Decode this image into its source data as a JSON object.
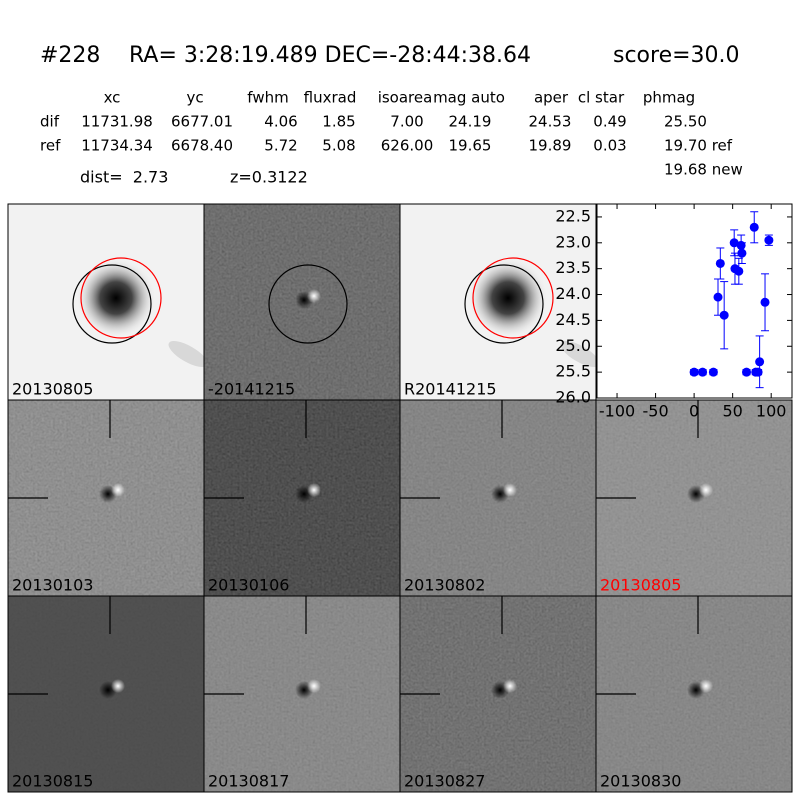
{
  "header": {
    "id": "#228",
    "coords": "RA= 3:28:19.489 DEC=-28:44:38.64",
    "score": "score=30.0"
  },
  "table": {
    "columns": [
      "xc",
      "yc",
      "fwhm",
      "fluxrad",
      "isoarea",
      "mag auto",
      "aper",
      "cl star",
      "phmag"
    ],
    "rows": [
      [
        "dif",
        "11731.98",
        "6677.01",
        "4.06",
        "1.85",
        "7.00",
        "24.19",
        "24.53",
        "0.49",
        "25.50"
      ],
      [
        "ref",
        "11734.34",
        "6678.40",
        "5.72",
        "5.08",
        "626.00",
        "19.65",
        "19.89",
        "0.03",
        "19.70 ref"
      ]
    ],
    "extra": "19.68 new",
    "dist": "dist=  2.73",
    "z": "z=0.3122"
  },
  "panels": [
    {
      "label": "20130805"
    },
    {
      "label": "-20141215"
    },
    {
      "label": "R20141215"
    },
    {
      "label": "20130103"
    },
    {
      "label": "20130106"
    },
    {
      "label": "20130802"
    },
    {
      "label": "20130805",
      "label_color": "#ff0000"
    },
    {
      "label": "20130815"
    },
    {
      "label": "20130817"
    },
    {
      "label": "20130827"
    },
    {
      "label": "20130830"
    }
  ],
  "chart_data": {
    "type": "scatter",
    "series": [
      {
        "color": "#0000ff",
        "x": [
          0,
          11,
          25,
          31,
          34,
          39,
          52,
          53,
          58,
          61,
          62,
          68,
          78,
          80,
          83,
          85,
          92,
          97
        ],
        "values": [
          25.5,
          25.5,
          25.5,
          24.05,
          23.4,
          24.4,
          23.0,
          23.5,
          23.55,
          23.05,
          23.2,
          25.5,
          22.7,
          25.5,
          25.5,
          25.3,
          24.15,
          22.95
        ],
        "errors": [
          0.05,
          0.05,
          0.05,
          0.35,
          0.3,
          0.65,
          0.25,
          0.3,
          0.25,
          0.2,
          0.2,
          0.05,
          0.3,
          0.05,
          0.05,
          0.5,
          0.55,
          0.1
        ]
      }
    ],
    "xlim": [
      -126,
      127
    ],
    "ylim": [
      26.0,
      22.25
    ],
    "xticks": [
      -100,
      -50,
      0,
      50,
      100
    ],
    "yticks": [
      22.5,
      {
        "value": 23.0,
        "label": "23.0"
      },
      23.5,
      {
        "value": 24.0,
        "label": "24.0"
      },
      24.5,
      {
        "value": 25.0,
        "label": "25.0"
      },
      25.5,
      {
        "value": 26.0,
        "label": "26.0"
      }
    ]
  }
}
